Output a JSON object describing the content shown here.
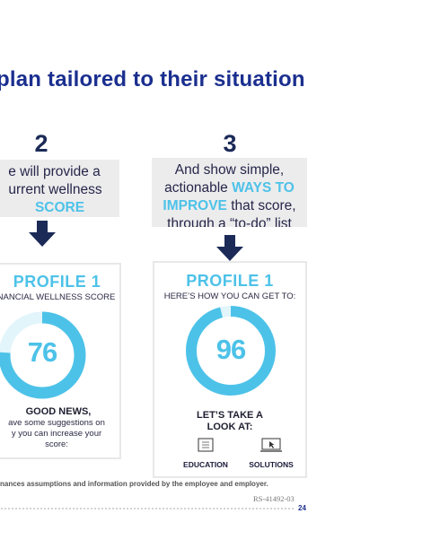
{
  "page": {
    "title": "plan tailored to their situation",
    "footnote": "nances assumptions and information provided by the employee and employer.",
    "ref_code": "RS-41492-03",
    "page_number": "24",
    "accent_color": "#4dc2e8",
    "title_color": "#1b2f8f"
  },
  "steps": [
    {
      "number": "2",
      "text_lines": [
        "e will provide a",
        "urrent wellness"
      ],
      "highlight": "SCORE",
      "arrow_icon": "arrow-down-icon"
    },
    {
      "number": "3",
      "line1": "And show simple,",
      "line2_prefix": "actionable ",
      "line2_highlight": "WAYS TO",
      "line3_highlight": "IMPROVE",
      "line3_suffix": " that score,",
      "line4": "through a “to-do” list",
      "arrow_icon": "arrow-down-icon"
    }
  ],
  "cards": [
    {
      "title": "PROFILE 1",
      "subtitle": "NANCIAL WELLNESS SCORE",
      "score": "76",
      "score_fraction": 0.76,
      "good_news": "GOOD NEWS,",
      "message_lines": [
        "ave some suggestions on",
        "y you can increase your",
        "score:"
      ]
    },
    {
      "title": "PROFILE 1",
      "subtitle": "HERE’S HOW YOU CAN GET TO:",
      "score": "96",
      "score_fraction": 0.96,
      "cta_lines": [
        "LET’S TAKE A",
        "LOOK AT:"
      ],
      "options": [
        {
          "label": "EDUCATION",
          "icon": "document-icon"
        },
        {
          "label": "SOLUTIONS",
          "icon": "monitor-cursor-icon"
        }
      ]
    }
  ]
}
